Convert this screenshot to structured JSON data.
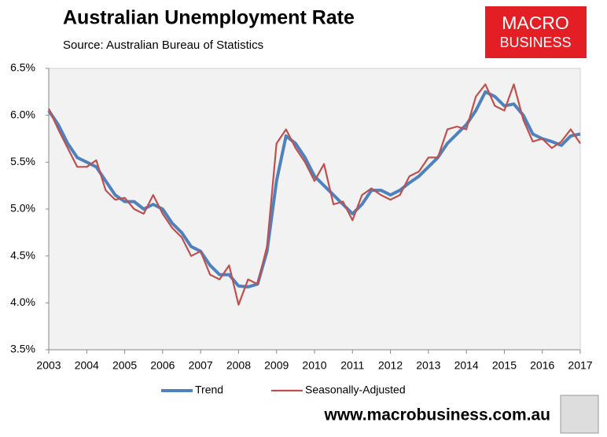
{
  "chart_data": {
    "type": "line",
    "title": "Australian Unemployment Rate",
    "subtitle": "Source: Australian Bureau of Statistics",
    "logo": [
      "MACRO",
      "BUSINESS"
    ],
    "footer": "www.macrobusiness.com.au",
    "x": [
      2003,
      2003.25,
      2003.5,
      2003.75,
      2004,
      2004.25,
      2004.5,
      2004.75,
      2005,
      2005.25,
      2005.5,
      2005.75,
      2006,
      2006.25,
      2006.5,
      2006.75,
      2007,
      2007.25,
      2007.5,
      2007.75,
      2008,
      2008.25,
      2008.5,
      2008.75,
      2009,
      2009.25,
      2009.5,
      2009.75,
      2010,
      2010.25,
      2010.5,
      2010.75,
      2011,
      2011.25,
      2011.5,
      2011.75,
      2012,
      2012.25,
      2012.5,
      2012.75,
      2013,
      2013.25,
      2013.5,
      2013.75,
      2014,
      2014.25,
      2014.5,
      2014.75,
      2015,
      2015.25,
      2015.5,
      2015.75,
      2016,
      2016.25,
      2016.5,
      2016.75,
      2017
    ],
    "series": [
      {
        "name": "Trend",
        "color": "#4f81bd",
        "values": [
          6.05,
          5.9,
          5.7,
          5.55,
          5.5,
          5.45,
          5.3,
          5.15,
          5.08,
          5.08,
          5.0,
          5.05,
          5.0,
          4.85,
          4.75,
          4.6,
          4.55,
          4.4,
          4.3,
          4.3,
          4.18,
          4.17,
          4.2,
          4.55,
          5.3,
          5.78,
          5.7,
          5.55,
          5.35,
          5.25,
          5.15,
          5.05,
          4.95,
          5.05,
          5.2,
          5.2,
          5.15,
          5.2,
          5.28,
          5.35,
          5.45,
          5.55,
          5.7,
          5.8,
          5.9,
          6.05,
          6.25,
          6.2,
          6.1,
          6.12,
          6.0,
          5.8,
          5.75,
          5.72,
          5.68,
          5.78,
          5.8
        ]
      },
      {
        "name": "Seasonally-Adjusted",
        "color": "#c0504d",
        "values": [
          6.07,
          5.85,
          5.65,
          5.45,
          5.45,
          5.52,
          5.2,
          5.1,
          5.12,
          5.0,
          4.95,
          5.15,
          4.95,
          4.8,
          4.7,
          4.5,
          4.55,
          4.3,
          4.25,
          4.4,
          3.98,
          4.25,
          4.2,
          4.6,
          5.7,
          5.85,
          5.65,
          5.5,
          5.3,
          5.48,
          5.05,
          5.08,
          4.88,
          5.15,
          5.22,
          5.15,
          5.1,
          5.15,
          5.35,
          5.4,
          5.55,
          5.55,
          5.85,
          5.88,
          5.85,
          6.2,
          6.33,
          6.1,
          6.05,
          6.33,
          5.95,
          5.72,
          5.75,
          5.65,
          5.72,
          5.85,
          5.7
        ]
      }
    ],
    "xlim": [
      2003,
      2017
    ],
    "xticks": [
      2003,
      2004,
      2005,
      2006,
      2007,
      2008,
      2009,
      2010,
      2011,
      2012,
      2013,
      2014,
      2015,
      2016,
      2017
    ],
    "ylim": [
      3.5,
      6.5
    ],
    "yticks": [
      {
        "value": 3.5,
        "label": "3.5%"
      },
      {
        "value": 4.0,
        "label": "4.0%"
      },
      {
        "value": 4.5,
        "label": "4.5%"
      },
      {
        "value": 5.0,
        "label": "5.0%"
      },
      {
        "value": 5.5,
        "label": "5.5%"
      },
      {
        "value": 6.0,
        "label": "6.0%"
      },
      {
        "value": 6.5,
        "label": "6.5%"
      }
    ],
    "legend": "bottom"
  }
}
